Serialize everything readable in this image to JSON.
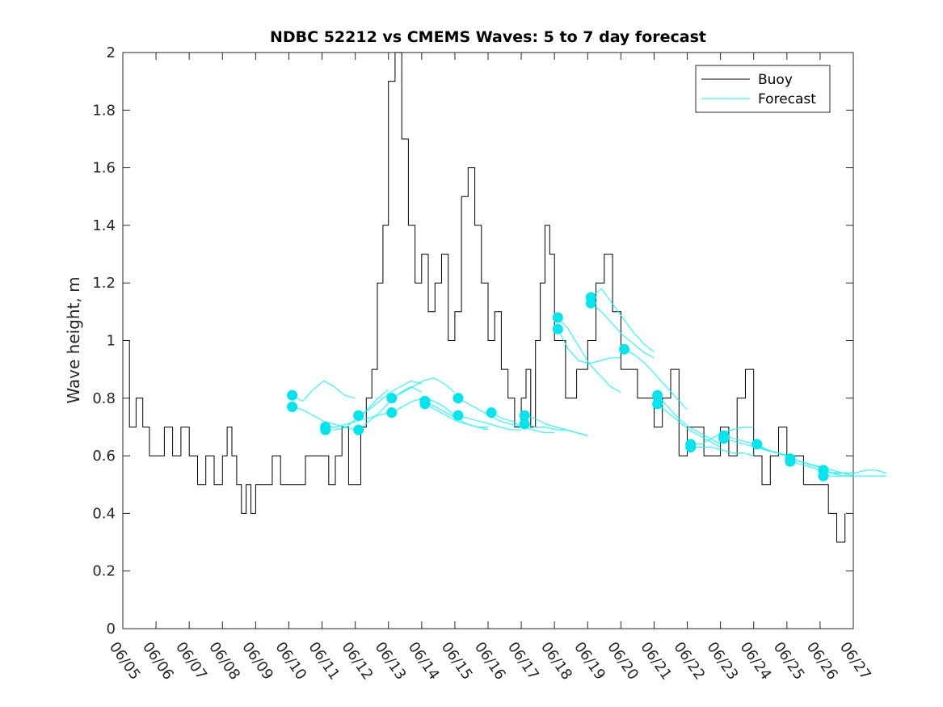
{
  "chart_data": {
    "type": "line",
    "title": "NDBC 52212 vs CMEMS Waves: 5 to 7 day forecast",
    "xlabel": "",
    "ylabel": "Wave height, m",
    "ylim": [
      0,
      2
    ],
    "yticks": [
      0,
      0.2,
      0.4,
      0.6,
      0.8,
      1,
      1.2,
      1.4,
      1.6,
      1.8,
      2
    ],
    "xlim": [
      "06/05",
      "06/27"
    ],
    "xticks": [
      "06/05",
      "06/06",
      "06/07",
      "06/08",
      "06/09",
      "06/10",
      "06/11",
      "06/12",
      "06/13",
      "06/14",
      "06/15",
      "06/16",
      "06/17",
      "06/18",
      "06/19",
      "06/20",
      "06/21",
      "06/22",
      "06/23",
      "06/24",
      "06/25",
      "06/26",
      "06/27"
    ],
    "grid": false,
    "legend": {
      "position": "top-right",
      "entries": [
        "Buoy",
        "Forecast"
      ]
    },
    "colors": {
      "buoy": "#000000",
      "forecast": "#00ffff",
      "markers": "#00e5ee"
    },
    "series": [
      {
        "name": "Buoy",
        "points": [
          [
            "06/05",
            1.0
          ],
          [
            "06/05",
            0.7
          ],
          [
            "06/05",
            0.8
          ],
          [
            "06/05",
            0.7
          ],
          [
            "06/05",
            0.6
          ],
          [
            "06/06",
            0.6
          ],
          [
            "06/06",
            0.7
          ],
          [
            "06/06",
            0.6
          ],
          [
            "06/06",
            0.7
          ],
          [
            "06/07",
            0.6
          ],
          [
            "06/07",
            0.5
          ],
          [
            "06/07",
            0.6
          ],
          [
            "06/07",
            0.5
          ],
          [
            "06/08",
            0.6
          ],
          [
            "06/08",
            0.7
          ],
          [
            "06/08",
            0.6
          ],
          [
            "06/08",
            0.5
          ],
          [
            "06/08",
            0.4
          ],
          [
            "06/08",
            0.5
          ],
          [
            "06/08",
            0.4
          ],
          [
            "06/09",
            0.5
          ],
          [
            "06/09",
            0.5
          ],
          [
            "06/09",
            0.6
          ],
          [
            "06/09",
            0.5
          ],
          [
            "06/10",
            0.5
          ],
          [
            "06/10",
            0.6
          ],
          [
            "06/11",
            0.6
          ],
          [
            "06/11",
            0.5
          ],
          [
            "06/11",
            0.6
          ],
          [
            "06/11",
            0.7
          ],
          [
            "06/11",
            0.5
          ],
          [
            "06/12",
            0.5
          ],
          [
            "06/12",
            0.7
          ],
          [
            "06/12",
            0.8
          ],
          [
            "06/12",
            0.9
          ],
          [
            "06/12",
            1.2
          ],
          [
            "06/12",
            1.4
          ],
          [
            "06/13",
            1.9
          ],
          [
            "06/13",
            2.0
          ],
          [
            "06/13",
            1.7
          ],
          [
            "06/13",
            1.4
          ],
          [
            "06/13",
            1.2
          ],
          [
            "06/14",
            1.3
          ],
          [
            "06/14",
            1.1
          ],
          [
            "06/14",
            1.2
          ],
          [
            "06/14",
            1.3
          ],
          [
            "06/14",
            1.0
          ],
          [
            "06/15",
            1.1
          ],
          [
            "06/15",
            1.5
          ],
          [
            "06/15",
            1.6
          ],
          [
            "06/15",
            1.4
          ],
          [
            "06/15",
            1.2
          ],
          [
            "06/16",
            1.0
          ],
          [
            "06/16",
            1.1
          ],
          [
            "06/16",
            0.9
          ],
          [
            "06/16",
            0.8
          ],
          [
            "06/16",
            0.7
          ],
          [
            "06/17",
            0.8
          ],
          [
            "06/17",
            0.9
          ],
          [
            "06/17",
            0.7
          ],
          [
            "06/17",
            1.0
          ],
          [
            "06/17",
            1.2
          ],
          [
            "06/17",
            1.4
          ],
          [
            "06/17",
            1.3
          ],
          [
            "06/18",
            1.0
          ],
          [
            "06/18",
            0.8
          ],
          [
            "06/18",
            0.9
          ],
          [
            "06/19",
            1.0
          ],
          [
            "06/19",
            1.2
          ],
          [
            "06/19",
            1.3
          ],
          [
            "06/19",
            1.1
          ],
          [
            "06/20",
            0.9
          ],
          [
            "06/20",
            0.8
          ],
          [
            "06/21",
            0.7
          ],
          [
            "06/21",
            0.8
          ],
          [
            "06/21",
            0.9
          ],
          [
            "06/21",
            0.6
          ],
          [
            "06/22",
            0.7
          ],
          [
            "06/22",
            0.6
          ],
          [
            "06/23",
            0.7
          ],
          [
            "06/23",
            0.6
          ],
          [
            "06/23",
            0.8
          ],
          [
            "06/23",
            0.9
          ],
          [
            "06/24",
            0.6
          ],
          [
            "06/24",
            0.5
          ],
          [
            "06/24",
            0.6
          ],
          [
            "06/24",
            0.7
          ],
          [
            "06/25",
            0.6
          ],
          [
            "06/25",
            0.5
          ],
          [
            "06/26",
            0.5
          ],
          [
            "06/26",
            0.4
          ],
          [
            "06/26",
            0.3
          ],
          [
            "06/26",
            0.4
          ]
        ]
      },
      {
        "name": "Forecast",
        "style": "thin lines starting at daily markers",
        "runs": [
          {
            "start": [
              "06/10",
              0.81
            ],
            "points": [
              0.79,
              0.83,
              0.86,
              0.84,
              0.81,
              0.8
            ]
          },
          {
            "start": [
              "06/10",
              0.77
            ],
            "points": [
              0.76,
              0.74,
              0.72,
              0.71,
              0.7,
              0.69
            ]
          },
          {
            "start": [
              "06/11",
              0.7
            ],
            "points": [
              0.7,
              0.71,
              0.72,
              0.73,
              0.74,
              0.75
            ]
          },
          {
            "start": [
              "06/11",
              0.69
            ],
            "points": [
              0.69,
              0.7,
              0.73,
              0.76,
              0.8,
              0.83
            ]
          },
          {
            "start": [
              "06/12",
              0.74
            ],
            "points": [
              0.76,
              0.79,
              0.82,
              0.84,
              0.86,
              0.85
            ]
          },
          {
            "start": [
              "06/12",
              0.69
            ],
            "points": [
              0.72,
              0.75,
              0.79,
              0.82,
              0.84,
              0.82
            ]
          },
          {
            "start": [
              "06/13",
              0.8
            ],
            "points": [
              0.82,
              0.84,
              0.86,
              0.87,
              0.85,
              0.82
            ]
          },
          {
            "start": [
              "06/13",
              0.75
            ],
            "points": [
              0.77,
              0.79,
              0.8,
              0.79,
              0.77,
              0.74
            ]
          },
          {
            "start": [
              "06/14",
              0.79
            ],
            "points": [
              0.77,
              0.75,
              0.73,
              0.71,
              0.7,
              0.69
            ]
          },
          {
            "start": [
              "06/14",
              0.78
            ],
            "points": [
              0.76,
              0.74,
              0.72,
              0.71,
              0.7,
              0.7
            ]
          },
          {
            "start": [
              "06/15",
              0.8
            ],
            "points": [
              0.78,
              0.76,
              0.74,
              0.72,
              0.71,
              0.7
            ]
          },
          {
            "start": [
              "06/15",
              0.74
            ],
            "points": [
              0.73,
              0.72,
              0.71,
              0.7,
              0.69,
              0.69
            ]
          },
          {
            "start": [
              "06/16",
              0.75
            ],
            "points": [
              0.73,
              0.72,
              0.7,
              0.69,
              0.68,
              0.68
            ]
          },
          {
            "start": [
              "06/17",
              0.74
            ],
            "points": [
              0.73,
              0.71,
              0.7,
              0.69,
              0.68,
              0.67
            ]
          },
          {
            "start": [
              "06/17",
              0.71
            ],
            "points": [
              0.7,
              0.7,
              0.69,
              0.69,
              0.68,
              0.67
            ]
          },
          {
            "start": [
              "06/18",
              1.08
            ],
            "points": [
              1.04,
              0.98,
              0.92,
              0.88,
              0.84,
              0.82
            ]
          },
          {
            "start": [
              "06/18",
              1.04
            ],
            "points": [
              0.97,
              0.93,
              0.92,
              0.93,
              0.94,
              0.94
            ]
          },
          {
            "start": [
              "06/19",
              1.15
            ],
            "points": [
              1.18,
              1.13,
              1.08,
              1.03,
              0.99,
              0.96
            ]
          },
          {
            "start": [
              "06/19",
              1.13
            ],
            "points": [
              1.1,
              1.06,
              1.02,
              0.99,
              0.96,
              0.94
            ]
          },
          {
            "start": [
              "06/20",
              0.97
            ],
            "points": [
              0.95,
              0.92,
              0.88,
              0.84,
              0.8,
              0.76
            ]
          },
          {
            "start": [
              "06/21",
              0.81
            ],
            "points": [
              0.77,
              0.73,
              0.7,
              0.68,
              0.66,
              0.64
            ]
          },
          {
            "start": [
              "06/21",
              0.78
            ],
            "points": [
              0.75,
              0.72,
              0.69,
              0.67,
              0.65,
              0.63
            ]
          },
          {
            "start": [
              "06/22",
              0.64
            ],
            "points": [
              0.64,
              0.66,
              0.68,
              0.69,
              0.7,
              0.7
            ]
          },
          {
            "start": [
              "06/22",
              0.63
            ],
            "points": [
              0.63,
              0.63,
              0.62,
              0.61,
              0.61,
              0.6
            ]
          },
          {
            "start": [
              "06/23",
              0.67
            ],
            "points": [
              0.66,
              0.65,
              0.64,
              0.62,
              0.61,
              0.6
            ]
          },
          {
            "start": [
              "06/23",
              0.66
            ],
            "points": [
              0.65,
              0.64,
              0.63,
              0.62,
              0.61,
              0.6
            ]
          },
          {
            "start": [
              "06/24",
              0.64
            ],
            "points": [
              0.62,
              0.61,
              0.6,
              0.58,
              0.57,
              0.56
            ]
          },
          {
            "start": [
              "06/25",
              0.59
            ],
            "points": [
              0.58,
              0.57,
              0.56,
              0.55,
              0.54,
              0.53
            ]
          },
          {
            "start": [
              "06/25",
              0.58
            ],
            "points": [
              0.57,
              0.56,
              0.55,
              0.54,
              0.53,
              0.53
            ]
          },
          {
            "start": [
              "06/26",
              0.55
            ],
            "points": [
              0.54,
              0.54,
              0.54,
              0.55,
              0.55,
              0.54
            ]
          },
          {
            "start": [
              "06/26",
              0.53
            ],
            "points": [
              0.53,
              0.53,
              0.53,
              0.53,
              0.53,
              0.53
            ]
          }
        ]
      }
    ]
  }
}
